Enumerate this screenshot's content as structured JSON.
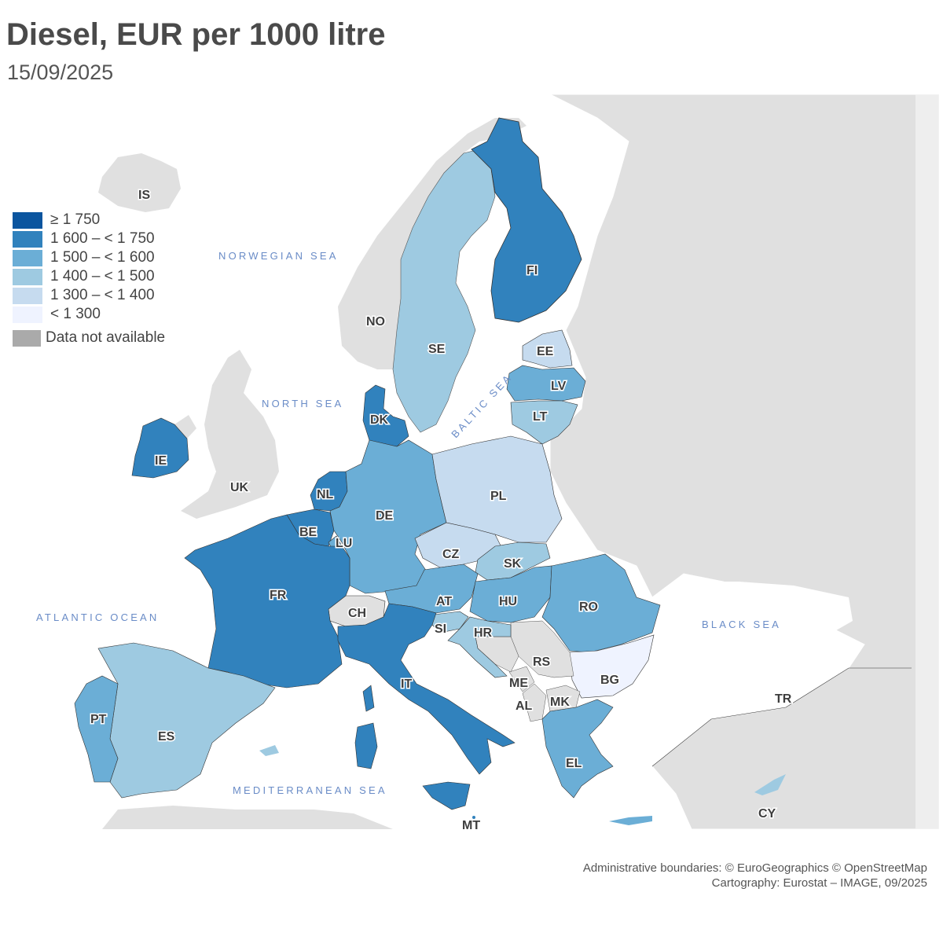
{
  "title": "Diesel, EUR per 1000 litre",
  "subtitle": "15/09/2025",
  "legend": {
    "classes": [
      {
        "label": "≥ 1 750",
        "color": "#0b559f"
      },
      {
        "label": "1 600 – < 1 750",
        "color": "#3182bd"
      },
      {
        "label": "1 500 – < 1 600",
        "color": "#6baed6"
      },
      {
        "label": "1 400 – < 1 500",
        "color": "#9ecae1"
      },
      {
        "label": "1 300 – < 1 400",
        "color": "#c6dbef"
      },
      {
        "label": "< 1 300",
        "color": "#eff3ff"
      }
    ],
    "na": {
      "label": "Data not available",
      "color": "#aaaaaa"
    }
  },
  "seas": {
    "norwegian": "NORWEGIAN SEA",
    "north": "NORTH SEA",
    "baltic": "BALTIC SEA",
    "atlantic": "ATLANTIC OCEAN",
    "black": "BLACK SEA",
    "mediterranean": "MEDITERRANEAN SEA"
  },
  "countries": {
    "IS": {
      "label": "IS"
    },
    "NO": {
      "label": "NO"
    },
    "SE": {
      "label": "SE"
    },
    "FI": {
      "label": "FI"
    },
    "EE": {
      "label": "EE"
    },
    "LV": {
      "label": "LV"
    },
    "LT": {
      "label": "LT"
    },
    "DK": {
      "label": "DK"
    },
    "IE": {
      "label": "IE"
    },
    "UK": {
      "label": "UK"
    },
    "NL": {
      "label": "NL"
    },
    "BE": {
      "label": "BE"
    },
    "LU": {
      "label": "LU"
    },
    "DE": {
      "label": "DE"
    },
    "PL": {
      "label": "PL"
    },
    "CZ": {
      "label": "CZ"
    },
    "SK": {
      "label": "SK"
    },
    "AT": {
      "label": "AT"
    },
    "HU": {
      "label": "HU"
    },
    "RO": {
      "label": "RO"
    },
    "FR": {
      "label": "FR"
    },
    "CH": {
      "label": "CH"
    },
    "SI": {
      "label": "SI"
    },
    "HR": {
      "label": "HR"
    },
    "RS": {
      "label": "RS"
    },
    "BG": {
      "label": "BG"
    },
    "ME": {
      "label": "ME"
    },
    "AL": {
      "label": "AL"
    },
    "MK": {
      "label": "MK"
    },
    "IT": {
      "label": "IT"
    },
    "EL": {
      "label": "EL"
    },
    "TR": {
      "label": "TR"
    },
    "PT": {
      "label": "PT"
    },
    "ES": {
      "label": "ES"
    },
    "MT": {
      "label": "MT"
    },
    "CY": {
      "label": "CY"
    }
  },
  "credits": {
    "line1": "Administrative boundaries: © EuroGeographics © OpenStreetMap",
    "line2": "Cartography: Eurostat – IMAGE, 09/2025"
  }
}
